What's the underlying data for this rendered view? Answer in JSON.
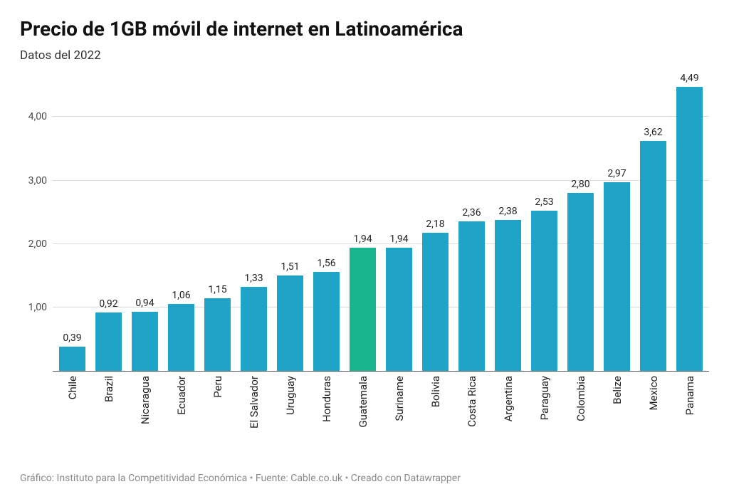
{
  "title": "Precio de 1GB móvil de internet en Latinoamérica",
  "subtitle": "Datos del 2022",
  "footer": "Gráfico: Instituto para la Competitividad Económica • Fuente: Cable.co.uk • Creado con Datawrapper",
  "chart": {
    "type": "bar",
    "background_color": "#ffffff",
    "grid_color": "#dcdcdc",
    "baseline_color": "#555555",
    "title_fontsize": 28,
    "subtitle_fontsize": 17,
    "label_fontsize": 14,
    "xlabel_fontsize": 15,
    "bar_width_ratio": 0.74,
    "default_bar_color": "#1fa3c6",
    "highlight_bar_color": "#18b58f",
    "text_color": "#222222",
    "footer_color": "#8a8a8a",
    "y": {
      "min": 0,
      "max": 4.7,
      "ticks": [
        1.0,
        2.0,
        3.0,
        4.0
      ],
      "tick_labels": [
        "1,00",
        "2,00",
        "3,00",
        "4,00"
      ]
    },
    "data": [
      {
        "country": "Chile",
        "value": 0.39,
        "label": "0,39",
        "highlight": false
      },
      {
        "country": "Brazil",
        "value": 0.92,
        "label": "0,92",
        "highlight": false
      },
      {
        "country": "Nicaragua",
        "value": 0.94,
        "label": "0,94",
        "highlight": false
      },
      {
        "country": "Ecuador",
        "value": 1.06,
        "label": "1,06",
        "highlight": false
      },
      {
        "country": "Peru",
        "value": 1.15,
        "label": "1,15",
        "highlight": false
      },
      {
        "country": "El Salvador",
        "value": 1.33,
        "label": "1,33",
        "highlight": false
      },
      {
        "country": "Uruguay",
        "value": 1.51,
        "label": "1,51",
        "highlight": false
      },
      {
        "country": "Honduras",
        "value": 1.56,
        "label": "1,56",
        "highlight": false
      },
      {
        "country": "Guatemala",
        "value": 1.94,
        "label": "1,94",
        "highlight": true
      },
      {
        "country": "Suriname",
        "value": 1.94,
        "label": "1,94",
        "highlight": false
      },
      {
        "country": "Bolivia",
        "value": 2.18,
        "label": "2,18",
        "highlight": false
      },
      {
        "country": "Costa Rica",
        "value": 2.36,
        "label": "2,36",
        "highlight": false
      },
      {
        "country": "Argentina",
        "value": 2.38,
        "label": "2,38",
        "highlight": false
      },
      {
        "country": "Paraguay",
        "value": 2.53,
        "label": "2,53",
        "highlight": false
      },
      {
        "country": "Colombia",
        "value": 2.8,
        "label": "2,80",
        "highlight": false
      },
      {
        "country": "Belize",
        "value": 2.97,
        "label": "2,97",
        "highlight": false
      },
      {
        "country": "Mexico",
        "value": 3.62,
        "label": "3,62",
        "highlight": false
      },
      {
        "country": "Panama",
        "value": 4.49,
        "label": "4,49",
        "highlight": false
      }
    ]
  }
}
